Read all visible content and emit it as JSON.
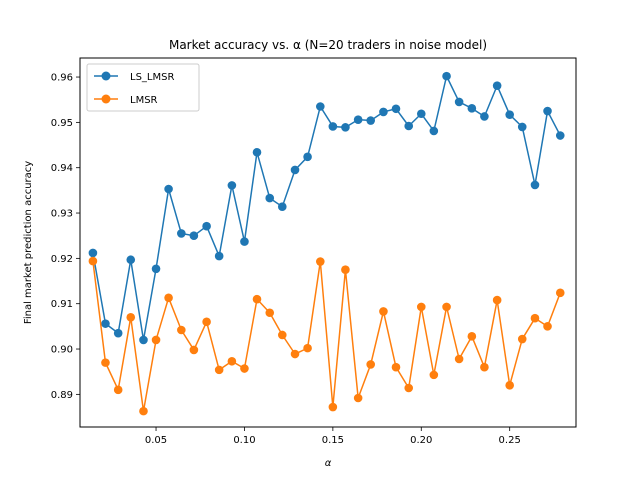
{
  "chart_data": {
    "type": "line",
    "title": "Market accuracy vs. α (N=20 traders in noise model)",
    "xlabel": "α",
    "ylabel": "Final market prediction accuracy",
    "xlim": [
      0.007,
      0.2875
    ],
    "ylim": [
      0.8828,
      0.9642
    ],
    "xticks": [
      0.05,
      0.1,
      0.15,
      0.2,
      0.25
    ],
    "xtick_labels": [
      "0.05",
      "0.10",
      "0.15",
      "0.20",
      "0.25"
    ],
    "yticks": [
      0.89,
      0.9,
      0.91,
      0.92,
      0.93,
      0.94,
      0.95,
      0.96
    ],
    "ytick_labels": [
      "0.89",
      "0.90",
      "0.91",
      "0.92",
      "0.93",
      "0.94",
      "0.95",
      "0.96"
    ],
    "grid": false,
    "legend_position": "top-left",
    "x": [
      0.0143,
      0.0214,
      0.0286,
      0.0357,
      0.0429,
      0.05,
      0.0571,
      0.0643,
      0.0714,
      0.0786,
      0.0857,
      0.0929,
      0.1,
      0.1071,
      0.1143,
      0.1214,
      0.1286,
      0.1357,
      0.1429,
      0.15,
      0.1571,
      0.1643,
      0.1714,
      0.1786,
      0.1857,
      0.1929,
      0.2,
      0.2071,
      0.2143,
      0.2214,
      0.2286,
      0.2357,
      0.2429,
      0.25,
      0.2571,
      0.2643,
      0.2714,
      0.2786
    ],
    "series": [
      {
        "name": "LS_LMSR",
        "color": "#1f77b4",
        "values": [
          0.9212,
          0.9056,
          0.9035,
          0.9197,
          0.902,
          0.9177,
          0.9353,
          0.9255,
          0.925,
          0.9271,
          0.9205,
          0.9361,
          0.9237,
          0.9434,
          0.9333,
          0.9314,
          0.9395,
          0.9424,
          0.9535,
          0.9491,
          0.9489,
          0.9506,
          0.9504,
          0.9523,
          0.953,
          0.9492,
          0.9519,
          0.9481,
          0.9602,
          0.9545,
          0.9531,
          0.9513,
          0.9581,
          0.9517,
          0.949,
          0.9362,
          0.9525,
          0.9471
        ]
      },
      {
        "name": "LMSR",
        "color": "#ff7f0e",
        "values": [
          0.9194,
          0.897,
          0.891,
          0.907,
          0.8863,
          0.902,
          0.9113,
          0.9042,
          0.8998,
          0.906,
          0.8954,
          0.8973,
          0.8957,
          0.911,
          0.908,
          0.9031,
          0.8989,
          0.9002,
          0.9193,
          0.8872,
          0.9175,
          0.8892,
          0.8966,
          0.9083,
          0.896,
          0.8914,
          0.9093,
          0.8943,
          0.9093,
          0.8978,
          0.9028,
          0.896,
          0.9108,
          0.892,
          0.9022,
          0.9068,
          0.905,
          0.9124
        ]
      }
    ]
  }
}
